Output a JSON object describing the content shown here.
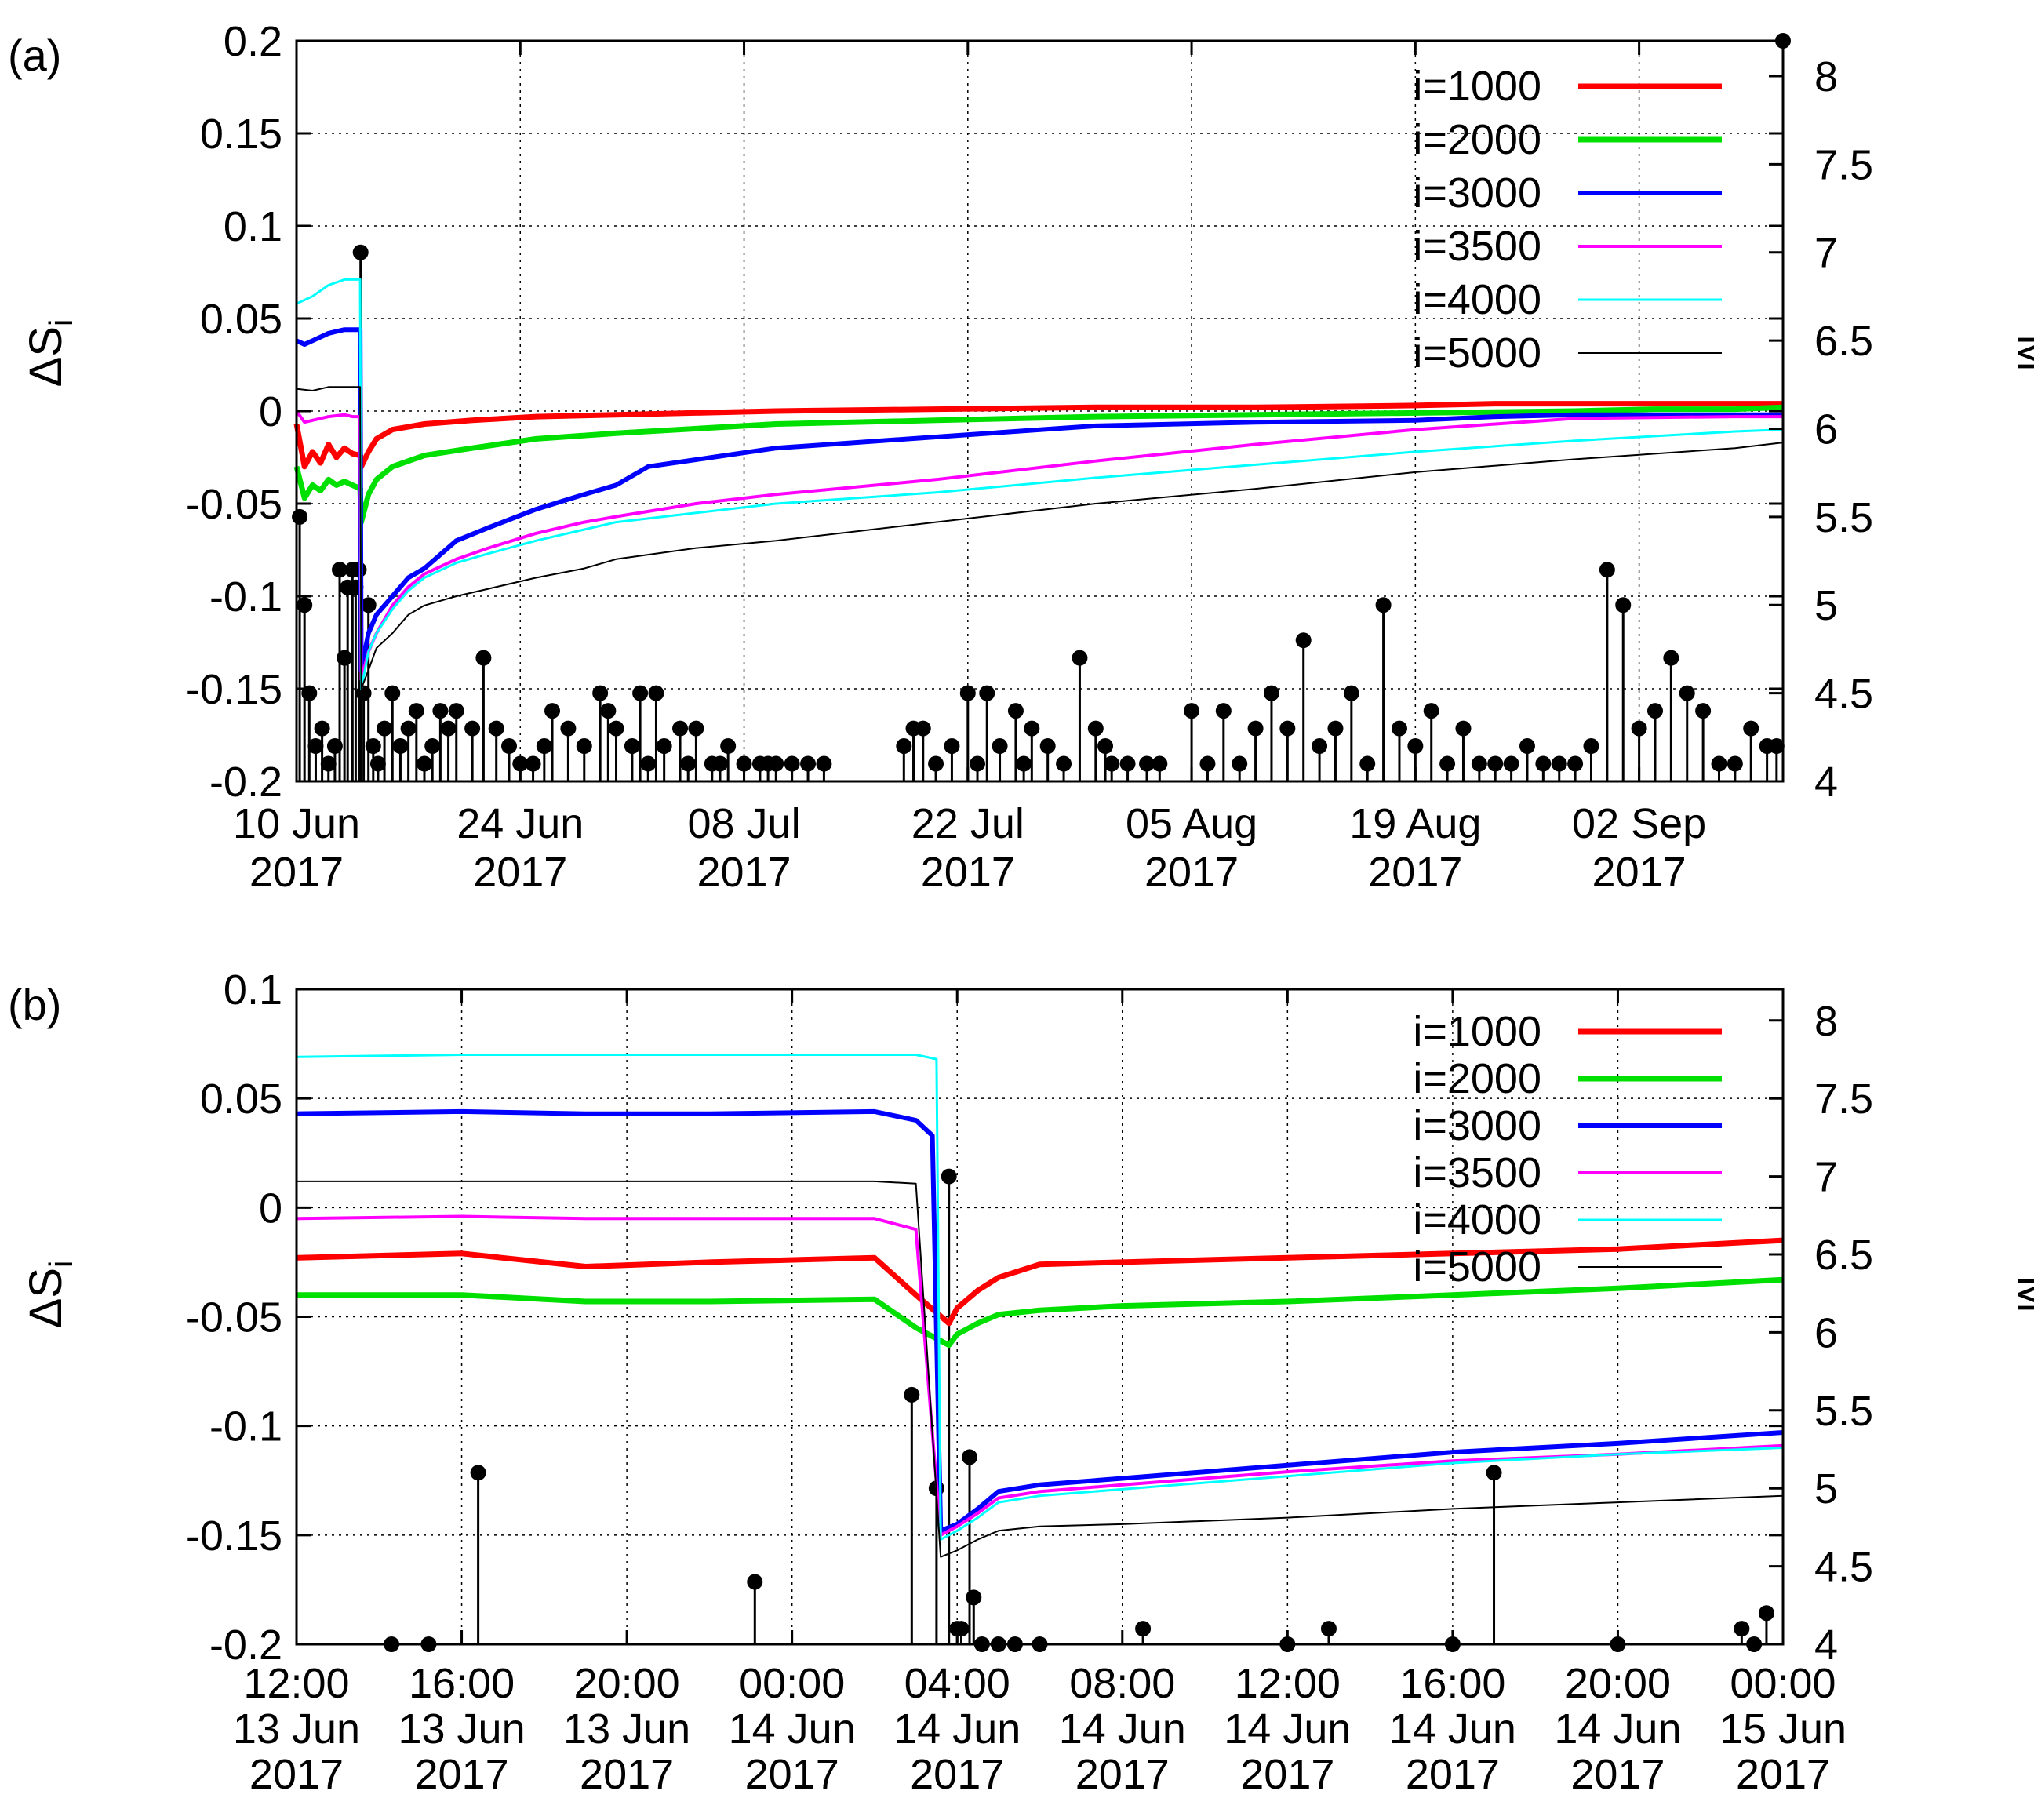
{
  "chart_data": [
    {
      "panel_label": "(a)",
      "type": "line",
      "ylabel": "ΔS",
      "ylabel_sub": "i",
      "y2label": "M",
      "ylim": [
        -0.2,
        0.2
      ],
      "y2lim": [
        4,
        8.2
      ],
      "xlim": [
        0,
        93
      ],
      "x_unit": "days since 10 Jun 2017",
      "grid": true,
      "legend_position": "top-right",
      "y_ticks": [
        -0.2,
        -0.15,
        -0.1,
        -0.05,
        0,
        0.05,
        0.1,
        0.15,
        0.2
      ],
      "y_tick_labels": [
        "-0.2",
        "-0.15",
        "-0.1",
        "-0.05",
        "0",
        "0.05",
        "0.1",
        "0.15",
        "0.2"
      ],
      "y2_ticks": [
        4,
        4.5,
        5,
        5.5,
        6,
        6.5,
        7,
        7.5,
        8
      ],
      "y2_tick_labels": [
        "4",
        "4.5",
        "5",
        "5.5",
        "6",
        "6.5",
        "7",
        "7.5",
        "8"
      ],
      "x_ticks": [
        0,
        14,
        28,
        42,
        56,
        70,
        84
      ],
      "x_tick_labels": [
        [
          "10 Jun",
          "2017"
        ],
        [
          "24 Jun",
          "2017"
        ],
        [
          "08 Jul",
          "2017"
        ],
        [
          "22 Jul",
          "2017"
        ],
        [
          "05 Aug",
          "2017"
        ],
        [
          "19 Aug",
          "2017"
        ],
        [
          "02 Sep",
          "2017"
        ]
      ],
      "series": [
        {
          "name": "i=1000",
          "color": "#ff0000",
          "width": 7,
          "x": [
            0,
            0.5,
            1,
            1.5,
            2,
            2.5,
            3,
            3.5,
            4,
            3.98,
            4.05,
            4.5,
            5,
            6,
            8,
            11,
            15,
            20,
            30,
            40,
            50,
            60,
            70,
            75,
            80,
            85,
            90,
            93
          ],
          "y": [
            -0.007,
            -0.03,
            -0.022,
            -0.028,
            -0.018,
            -0.025,
            -0.02,
            -0.023,
            -0.024,
            -0.024,
            -0.03,
            -0.022,
            -0.015,
            -0.01,
            -0.007,
            -0.005,
            -0.003,
            -0.002,
            0,
            0.001,
            0.002,
            0.002,
            0.003,
            0.004,
            0.004,
            0.004,
            0.004,
            0.004
          ]
        },
        {
          "name": "i=2000",
          "color": "#00e000",
          "width": 7,
          "x": [
            0,
            0.5,
            1,
            1.5,
            2,
            2.5,
            3,
            3.5,
            4,
            3.98,
            4.05,
            4.5,
            5,
            6,
            8,
            11,
            15,
            20,
            30,
            40,
            50,
            60,
            70,
            80,
            85,
            90,
            93
          ],
          "y": [
            -0.03,
            -0.047,
            -0.04,
            -0.043,
            -0.037,
            -0.04,
            -0.038,
            -0.04,
            -0.042,
            -0.042,
            -0.06,
            -0.045,
            -0.037,
            -0.03,
            -0.024,
            -0.02,
            -0.015,
            -0.012,
            -0.007,
            -0.005,
            -0.003,
            -0.002,
            -0.001,
            0,
            0.001,
            0.001,
            0.002
          ]
        },
        {
          "name": "i=3000",
          "color": "#0000ff",
          "width": 6,
          "x": [
            0,
            0.5,
            1,
            1.5,
            2,
            2.5,
            3,
            3.5,
            3.98,
            4.05,
            4.5,
            5,
            6,
            7,
            8,
            10,
            12,
            15,
            18,
            20,
            22,
            26,
            30,
            40,
            50,
            60,
            70,
            75,
            80,
            90,
            93
          ],
          "y": [
            0.038,
            0.036,
            0.038,
            0.04,
            0.042,
            0.043,
            0.044,
            0.044,
            0.044,
            -0.14,
            -0.12,
            -0.11,
            -0.1,
            -0.09,
            -0.085,
            -0.07,
            -0.063,
            -0.053,
            -0.045,
            -0.04,
            -0.03,
            -0.025,
            -0.02,
            -0.014,
            -0.008,
            -0.006,
            -0.005,
            -0.003,
            -0.002,
            -0.002,
            -0.002
          ]
        },
        {
          "name": "i=3500",
          "color": "#ff00ff",
          "width": 4,
          "x": [
            0,
            0.5,
            1,
            2,
            3,
            3.5,
            3.98,
            4.05,
            4.5,
            5,
            6,
            7,
            8,
            10,
            12,
            15,
            18,
            20,
            25,
            30,
            40,
            50,
            60,
            70,
            80,
            90,
            93
          ],
          "y": [
            0,
            -0.006,
            -0.005,
            -0.003,
            -0.002,
            -0.003,
            -0.003,
            -0.145,
            -0.13,
            -0.12,
            -0.105,
            -0.095,
            -0.088,
            -0.08,
            -0.074,
            -0.066,
            -0.06,
            -0.057,
            -0.05,
            -0.045,
            -0.037,
            -0.027,
            -0.018,
            -0.01,
            -0.004,
            -0.003,
            -0.003
          ]
        },
        {
          "name": "i=4000",
          "color": "#00ffff",
          "width": 3,
          "x": [
            0,
            1,
            2,
            3,
            3.98,
            4.05,
            4.5,
            5,
            6,
            7,
            8,
            10,
            12,
            15,
            18,
            20,
            25,
            30,
            40,
            50,
            60,
            70,
            80,
            90,
            93
          ],
          "y": [
            0.058,
            0.062,
            0.068,
            0.071,
            0.071,
            -0.15,
            -0.13,
            -0.12,
            -0.107,
            -0.097,
            -0.09,
            -0.082,
            -0.077,
            -0.07,
            -0.064,
            -0.06,
            -0.055,
            -0.05,
            -0.044,
            -0.036,
            -0.029,
            -0.022,
            -0.016,
            -0.011,
            -0.01
          ]
        },
        {
          "name": "i=5000",
          "color": "#000000",
          "width": 2,
          "x": [
            0,
            1,
            2,
            3,
            3.98,
            4.05,
            4.5,
            5,
            6,
            7,
            8,
            10,
            12,
            15,
            18,
            20,
            25,
            30,
            40,
            50,
            60,
            70,
            80,
            90,
            93
          ],
          "y": [
            0.012,
            0.011,
            0.013,
            0.013,
            0.013,
            -0.15,
            -0.14,
            -0.128,
            -0.12,
            -0.11,
            -0.105,
            -0.1,
            -0.096,
            -0.09,
            -0.085,
            -0.08,
            -0.074,
            -0.07,
            -0.06,
            -0.05,
            -0.042,
            -0.033,
            -0.026,
            -0.02,
            -0.017
          ]
        }
      ],
      "events_M": {
        "x": [
          0.2,
          0.5,
          0.8,
          1.2,
          1.6,
          2.0,
          2.4,
          2.7,
          3.0,
          3.2,
          3.5,
          3.7,
          3.9,
          4.01,
          4.2,
          4.5,
          4.8,
          5.1,
          5.5,
          6,
          6.5,
          7,
          7.5,
          8,
          8.5,
          9,
          9.5,
          10,
          11,
          11.7,
          12.5,
          13.3,
          14,
          14.8,
          15.5,
          16,
          17,
          18,
          19,
          19.5,
          20,
          21,
          21.5,
          22,
          22.5,
          23,
          24,
          24.5,
          25,
          26,
          26.5,
          27,
          28,
          29,
          29.5,
          30,
          31,
          32,
          33,
          38,
          38.6,
          39.2,
          40,
          41,
          42,
          42.6,
          43.2,
          44,
          45,
          45.5,
          46,
          47,
          48,
          49,
          50,
          50.6,
          51,
          52,
          53.2,
          54,
          56,
          57,
          58,
          59,
          60,
          61,
          62,
          63,
          64,
          65,
          66,
          67,
          68,
          69,
          70,
          71,
          72,
          73,
          74,
          75,
          76,
          77,
          78,
          79,
          80,
          81,
          82,
          83,
          84,
          85,
          86,
          87,
          88,
          89,
          90,
          91,
          92,
          92.6
        ],
        "M": [
          5.5,
          5,
          4.5,
          4.2,
          4.3,
          4.1,
          4.2,
          5.2,
          4.7,
          5.1,
          5.2,
          5.1,
          5.2,
          7,
          4.5,
          5,
          4.2,
          4.1,
          4.3,
          4.5,
          4.2,
          4.3,
          4.4,
          4.1,
          4.2,
          4.4,
          4.3,
          4.4,
          4.3,
          4.7,
          4.3,
          4.2,
          4.1,
          4.1,
          4.2,
          4.4,
          4.3,
          4.2,
          4.5,
          4.4,
          4.3,
          4.2,
          4.5,
          4.1,
          4.5,
          4.2,
          4.3,
          4.1,
          4.3,
          4.1,
          4.1,
          4.2,
          4.1,
          4.1,
          4.1,
          4.1,
          4.1,
          4.1,
          4.1,
          4.2,
          4.3,
          4.3,
          4.1,
          4.2,
          4.5,
          4.1,
          4.5,
          4.2,
          4.4,
          4.1,
          4.3,
          4.2,
          4.1,
          4.7,
          4.3,
          4.2,
          4.1,
          4.1,
          4.1,
          4.1,
          4.4,
          4.1,
          4.4,
          4.1,
          4.3,
          4.5,
          4.3,
          4.8,
          4.2,
          4.3,
          4.5,
          4.1,
          5.0,
          4.3,
          4.2,
          4.4,
          4.1,
          4.3,
          4.1,
          4.1,
          4.1,
          4.2,
          4.1,
          4.1,
          4.1,
          4.2,
          5.2,
          5.0,
          4.3,
          4.4,
          4.7,
          4.5,
          4.4,
          4.1,
          4.1,
          4.3,
          4.2,
          4.2
        ],
        "marker_color": "#000000",
        "extra": [
          {
            "x": 93,
            "M": 8.2
          }
        ]
      }
    },
    {
      "panel_label": "(b)",
      "type": "line",
      "ylabel": "ΔS",
      "ylabel_sub": "i",
      "y2label": "M",
      "ylim": [
        -0.2,
        0.1
      ],
      "y2lim": [
        4,
        8.2
      ],
      "xlim": [
        0,
        36
      ],
      "x_unit": "hours since 12:00 13 Jun 2017",
      "grid": true,
      "legend_position": "top-right",
      "y_ticks": [
        -0.2,
        -0.15,
        -0.1,
        -0.05,
        0,
        0.05,
        0.1
      ],
      "y_tick_labels": [
        "-0.2",
        "-0.15",
        "-0.1",
        "-0.05",
        "0",
        "0.05",
        "0.1"
      ],
      "y2_ticks": [
        4,
        4.5,
        5,
        5.5,
        6,
        6.5,
        7,
        7.5,
        8
      ],
      "y2_tick_labels": [
        "4",
        "4.5",
        "5",
        "5.5",
        "6",
        "6.5",
        "7",
        "7.5",
        "8"
      ],
      "x_ticks": [
        0,
        4,
        8,
        12,
        16,
        20,
        24,
        28,
        32,
        36
      ],
      "x_tick_labels": [
        [
          "12:00",
          "13 Jun",
          "2017"
        ],
        [
          "16:00",
          "13 Jun",
          "2017"
        ],
        [
          "20:00",
          "13 Jun",
          "2017"
        ],
        [
          "00:00",
          "14 Jun",
          "2017"
        ],
        [
          "04:00",
          "14 Jun",
          "2017"
        ],
        [
          "08:00",
          "14 Jun",
          "2017"
        ],
        [
          "12:00",
          "14 Jun",
          "2017"
        ],
        [
          "16:00",
          "14 Jun",
          "2017"
        ],
        [
          "20:00",
          "14 Jun",
          "2017"
        ],
        [
          "00:00",
          "15 Jun",
          "2017"
        ]
      ],
      "series": [
        {
          "name": "i=1000",
          "color": "#ff0000",
          "width": 7,
          "x": [
            0,
            4,
            7,
            10,
            14,
            15,
            15.8,
            16,
            16.5,
            17,
            18,
            20,
            24,
            28,
            32,
            36
          ],
          "y": [
            -0.023,
            -0.021,
            -0.027,
            -0.025,
            -0.023,
            -0.04,
            -0.053,
            -0.046,
            -0.038,
            -0.032,
            -0.026,
            -0.025,
            -0.023,
            -0.021,
            -0.019,
            -0.015
          ]
        },
        {
          "name": "i=2000",
          "color": "#00e000",
          "width": 7,
          "x": [
            0,
            4,
            7,
            10,
            14,
            15,
            15.8,
            16,
            16.5,
            17,
            18,
            20,
            24,
            28,
            32,
            36
          ],
          "y": [
            -0.04,
            -0.04,
            -0.043,
            -0.043,
            -0.042,
            -0.055,
            -0.063,
            -0.058,
            -0.053,
            -0.049,
            -0.047,
            -0.045,
            -0.043,
            -0.04,
            -0.037,
            -0.033
          ]
        },
        {
          "name": "i=3000",
          "color": "#0000ff",
          "width": 6,
          "x": [
            0,
            4,
            7,
            10,
            14,
            15,
            15.4,
            15.6,
            16,
            16.5,
            17,
            18,
            20,
            24,
            28,
            32,
            36
          ],
          "y": [
            0.043,
            0.044,
            0.043,
            0.043,
            0.044,
            0.04,
            0.033,
            -0.148,
            -0.145,
            -0.138,
            -0.13,
            -0.127,
            -0.124,
            -0.118,
            -0.112,
            -0.108,
            -0.103
          ]
        },
        {
          "name": "i=3500",
          "color": "#ff00ff",
          "width": 4,
          "x": [
            0,
            4,
            7,
            10,
            14,
            15,
            15.6,
            16,
            16.5,
            17,
            18,
            20,
            24,
            28,
            32,
            36
          ],
          "y": [
            -0.005,
            -0.004,
            -0.005,
            -0.005,
            -0.005,
            -0.01,
            -0.15,
            -0.146,
            -0.14,
            -0.133,
            -0.13,
            -0.127,
            -0.121,
            -0.116,
            -0.113,
            -0.109
          ]
        },
        {
          "name": "i=4000",
          "color": "#00ffff",
          "width": 3,
          "x": [
            0,
            4,
            7,
            10,
            14,
            15,
            15.5,
            15.6,
            16,
            16.5,
            17,
            18,
            20,
            24,
            28,
            32,
            36
          ],
          "y": [
            0.069,
            0.07,
            0.07,
            0.07,
            0.07,
            0.07,
            0.068,
            -0.152,
            -0.148,
            -0.142,
            -0.135,
            -0.132,
            -0.129,
            -0.123,
            -0.117,
            -0.113,
            -0.11
          ]
        },
        {
          "name": "i=5000",
          "color": "#000000",
          "width": 2,
          "x": [
            0,
            4,
            7,
            10,
            14,
            15,
            15.6,
            16,
            16.5,
            17,
            18,
            20,
            24,
            28,
            32,
            36
          ],
          "y": [
            0.012,
            0.012,
            0.012,
            0.012,
            0.012,
            0.011,
            -0.16,
            -0.157,
            -0.152,
            -0.148,
            -0.146,
            -0.145,
            -0.142,
            -0.138,
            -0.135,
            -0.132
          ]
        }
      ],
      "events_M": {
        "x": [
          2.3,
          3.2,
          4.4,
          11.1,
          14.9,
          15.5,
          15.8,
          16.0,
          16.1,
          16.3,
          16.4,
          16.6,
          17.0,
          17.4,
          18.0,
          20.5,
          24.0,
          25.0,
          28.0,
          29.0,
          32.0,
          35.0,
          35.3,
          35.6
        ],
        "M": [
          4.0,
          4.0,
          5.1,
          4.4,
          5.6,
          5.0,
          7.0,
          4.1,
          4.1,
          5.2,
          4.3,
          4.0,
          4.0,
          4.0,
          4.0,
          4.1,
          4.0,
          4.1,
          4.0,
          5.1,
          4.0,
          4.1,
          4.0,
          4.2
        ],
        "marker_color": "#000000",
        "extra": []
      }
    }
  ]
}
